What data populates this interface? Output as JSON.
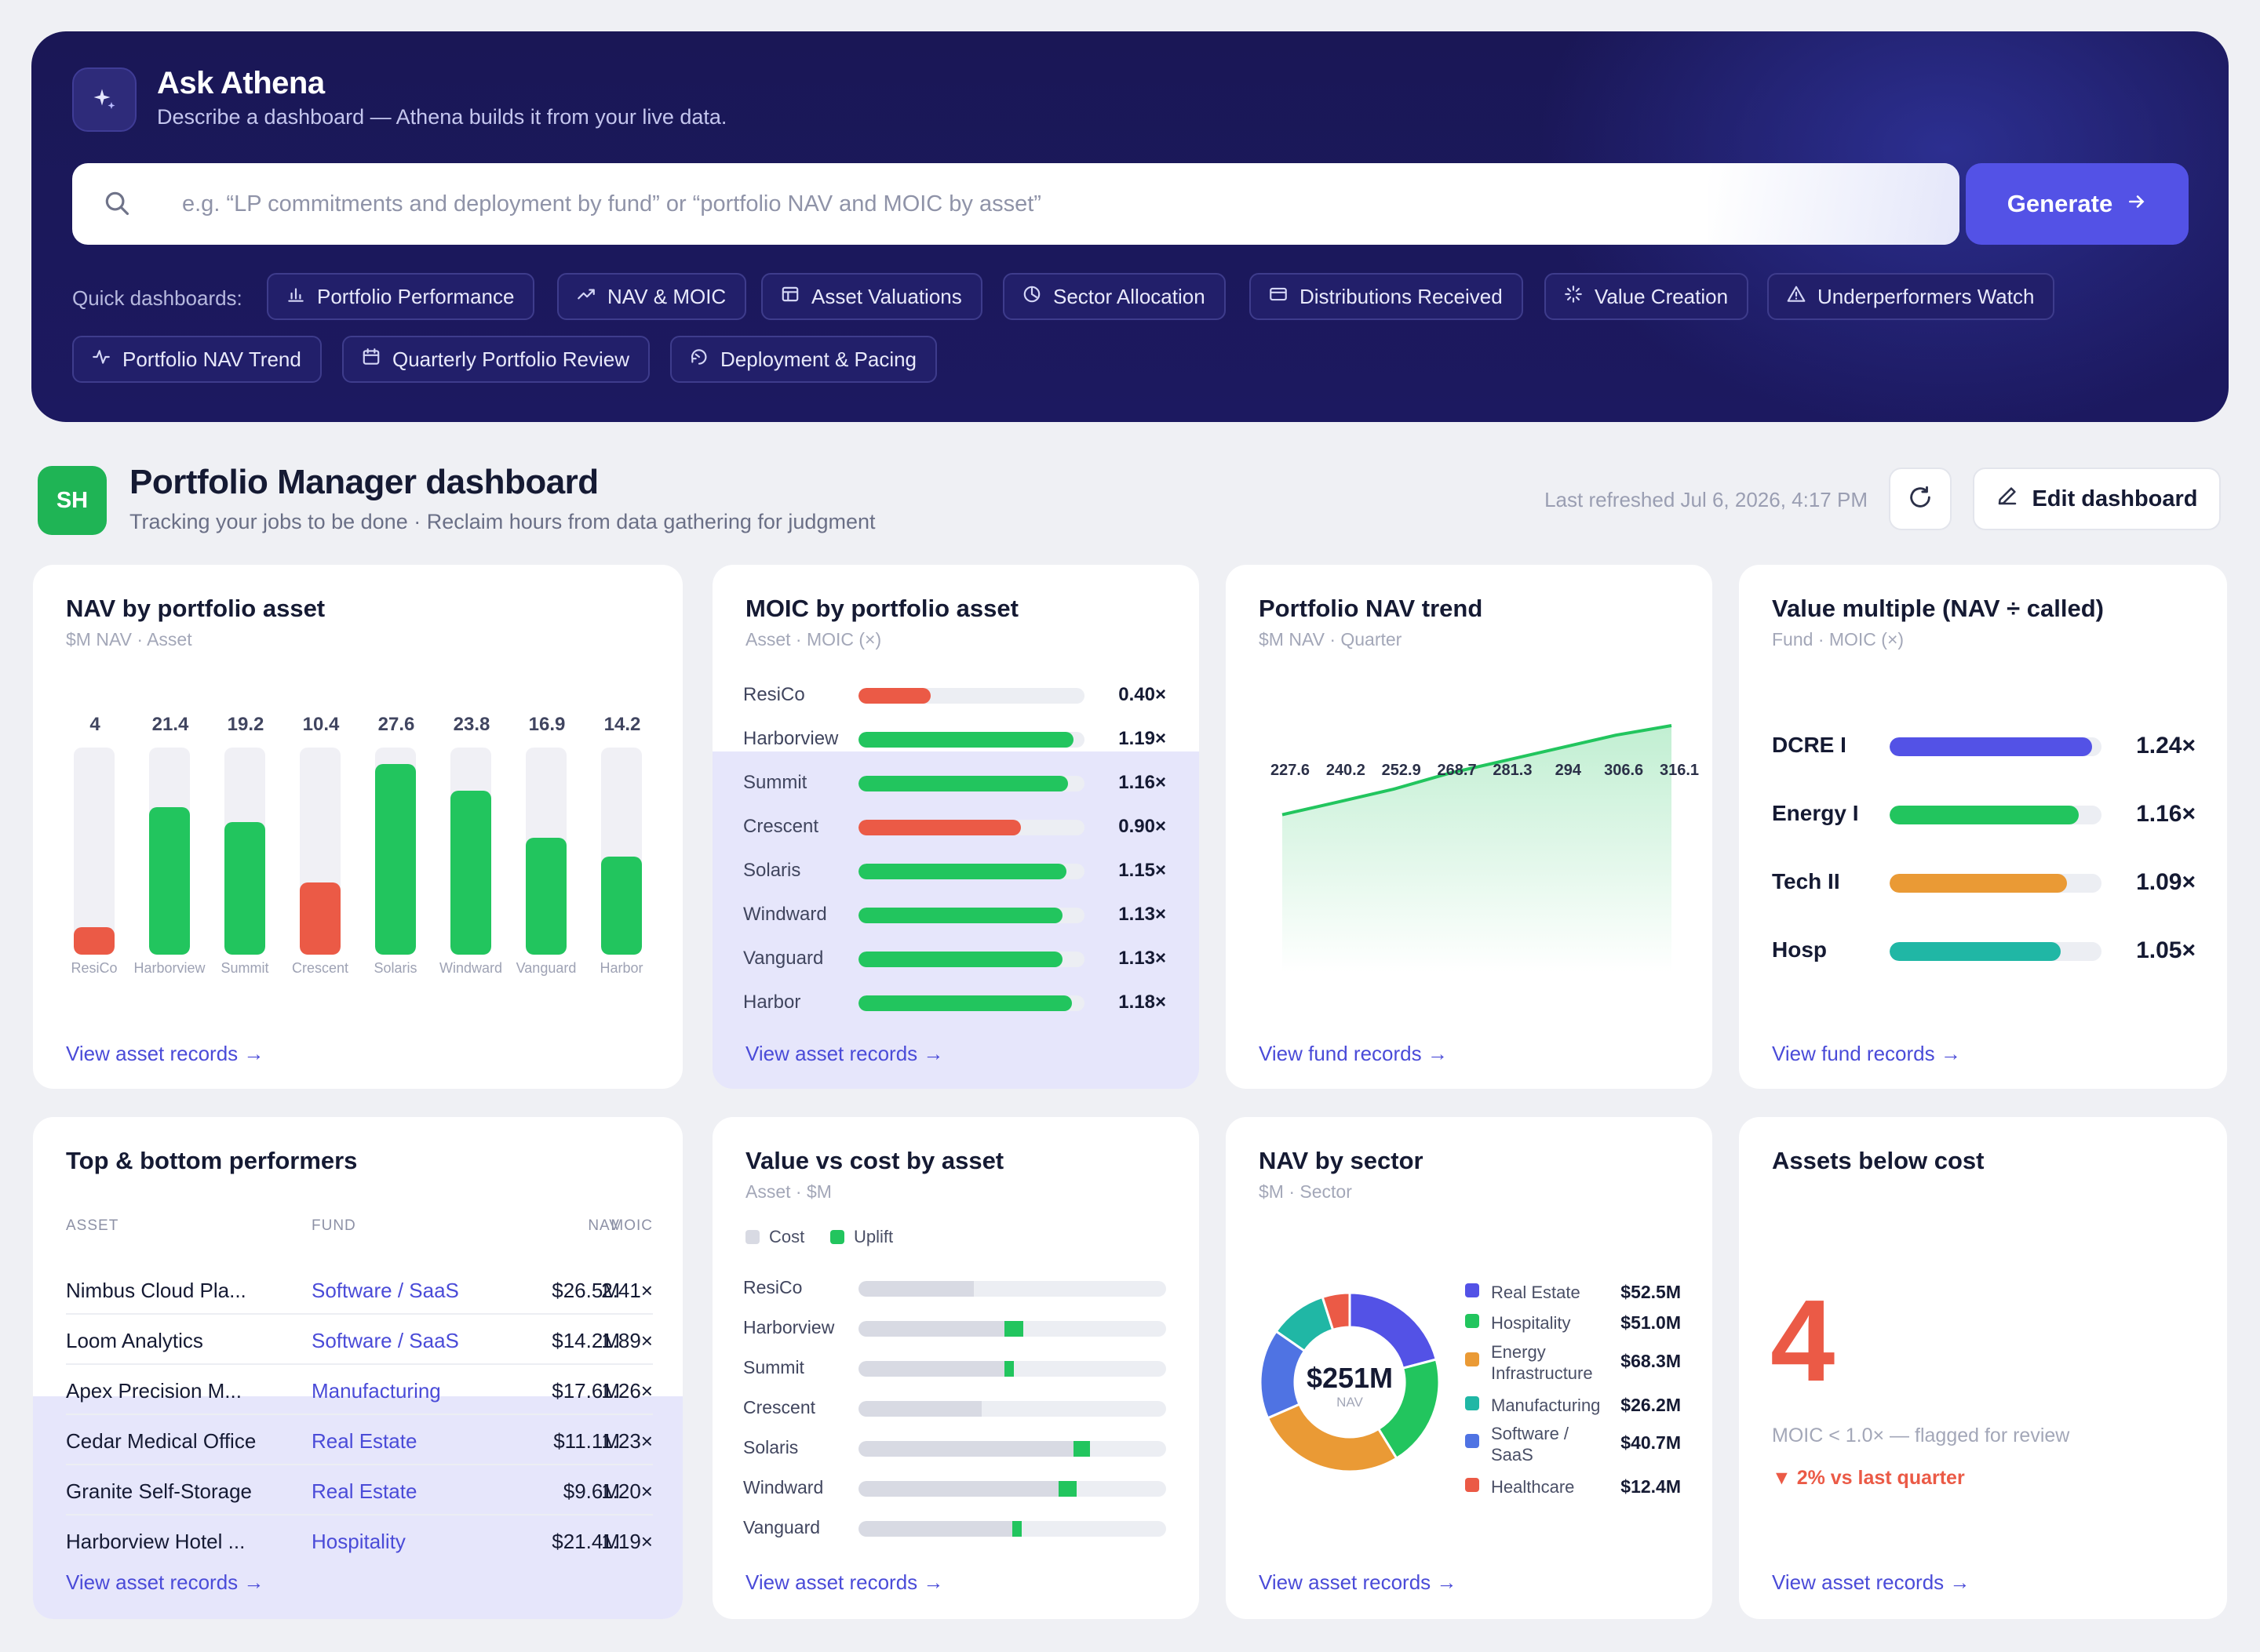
{
  "hero": {
    "title": "Ask Athena",
    "subtitle": "Describe a dashboard — Athena builds it from your live data.",
    "search_placeholder": "e.g. “LP commitments and deployment by fund” or “portfolio NAV and MOIC by asset”",
    "generate_label": "Generate",
    "quick_label": "Quick dashboards:",
    "chips": [
      {
        "label": "Portfolio Performance",
        "icon": "bar-chart-icon"
      },
      {
        "label": "NAV & MOIC",
        "icon": "trend-line-icon"
      },
      {
        "label": "Asset Valuations",
        "icon": "table-icon"
      },
      {
        "label": "Sector Allocation",
        "icon": "pie-icon"
      },
      {
        "label": "Distributions Received",
        "icon": "card-icon"
      },
      {
        "label": "Value Creation",
        "icon": "sparkle-icon"
      },
      {
        "label": "Underperformers Watch",
        "icon": "warning-icon"
      },
      {
        "label": "Portfolio NAV Trend",
        "icon": "pulse-icon"
      },
      {
        "label": "Quarterly Portfolio Review",
        "icon": "calendar-icon"
      },
      {
        "label": "Deployment & Pacing",
        "icon": "gauge-icon"
      }
    ]
  },
  "header": {
    "avatar": "SH",
    "title": "Portfolio Manager dashboard",
    "subtitle": "Tracking your jobs to be done · Reclaim hours from data gathering for judgment",
    "last_refreshed": "Last refreshed Jul 6, 2026, 4:17 PM",
    "edit_label": "Edit dashboard"
  },
  "colors": {
    "accent": "#5352e6",
    "green": "#22c55e",
    "red": "#eb5a46",
    "orange": "#ea9a35",
    "teal": "#20b7a5",
    "blue": "#4f73e3"
  },
  "cards": {
    "nav_asset": {
      "title": "NAV by portfolio asset",
      "subtitle": "$M NAV · Asset",
      "link": "View asset records →"
    },
    "moic_asset": {
      "title": "MOIC by portfolio asset",
      "subtitle": "Asset · MOIC (×)",
      "link": "View asset records →"
    },
    "nav_trend": {
      "title": "Portfolio NAV trend",
      "subtitle": "$M NAV · Quarter",
      "link": "View fund records →"
    },
    "value_multiple": {
      "title": "Value multiple (NAV ÷ called)",
      "subtitle": "Fund · MOIC (×)",
      "link": "View fund records →"
    },
    "performers": {
      "title": "Top & bottom performers",
      "link": "View asset records →",
      "columns": [
        "ASSET",
        "FUND",
        "NAV",
        "MOIC"
      ],
      "rows": [
        {
          "asset": "Nimbus Cloud Pla...",
          "fund": "Software / SaaS",
          "nav": "$26.5M",
          "moic": "2.41×"
        },
        {
          "asset": "Loom Analytics",
          "fund": "Software / SaaS",
          "nav": "$14.2M",
          "moic": "1.89×"
        },
        {
          "asset": "Apex Precision M...",
          "fund": "Manufacturing",
          "nav": "$17.6M",
          "moic": "1.26×"
        },
        {
          "asset": "Cedar Medical Office",
          "fund": "Real Estate",
          "nav": "$11.1M",
          "moic": "1.23×"
        },
        {
          "asset": "Granite Self-Storage",
          "fund": "Real Estate",
          "nav": "$9.6M",
          "moic": "1.20×"
        },
        {
          "asset": "Harborview Hotel ...",
          "fund": "Hospitality",
          "nav": "$21.4M",
          "moic": "1.19×"
        }
      ]
    },
    "value_cost": {
      "title": "Value vs cost by asset",
      "subtitle": "Asset · $M",
      "link": "View asset records →",
      "legend_cost": "Cost",
      "legend_uplift": "Uplift"
    },
    "nav_sector": {
      "title": "NAV by sector",
      "subtitle": "$M · Sector",
      "link": "View asset records →",
      "center_value": "$251M",
      "center_label": "NAV"
    },
    "below_cost": {
      "title": "Assets below cost",
      "value": "4",
      "caption": "MOIC < 1.0× — flagged for review",
      "delta": "▼ 2% vs last quarter",
      "link": "View asset records →"
    }
  },
  "chart_data": [
    {
      "type": "bar",
      "title": "NAV by portfolio asset",
      "categories": [
        "ResiCo",
        "Harborview",
        "Summit",
        "Crescent",
        "Solaris",
        "Windward",
        "Vanguard",
        "Harbor"
      ],
      "values": [
        4,
        21.4,
        19.2,
        10.4,
        27.6,
        23.8,
        16.9,
        14.2
      ],
      "labels": [
        "4",
        "21.4",
        "19.2",
        "10.4",
        "27.6",
        "23.8",
        "16.9",
        "14.2"
      ],
      "colors": [
        "#eb5a46",
        "#22c55e",
        "#22c55e",
        "#eb5a46",
        "#22c55e",
        "#22c55e",
        "#22c55e",
        "#22c55e"
      ],
      "ylim": [
        0,
        30
      ]
    },
    {
      "type": "bar",
      "title": "MOIC by portfolio asset",
      "orientation": "horizontal",
      "categories": [
        "ResiCo",
        "Harborview",
        "Summit",
        "Crescent",
        "Solaris",
        "Windward",
        "Vanguard",
        "Harbor"
      ],
      "values": [
        0.4,
        1.19,
        1.16,
        0.9,
        1.15,
        1.13,
        1.13,
        1.18
      ],
      "labels": [
        "0.40×",
        "1.19×",
        "1.16×",
        "0.90×",
        "1.15×",
        "1.13×",
        "1.13×",
        "1.18×"
      ],
      "colors": [
        "#eb5a46",
        "#22c55e",
        "#22c55e",
        "#eb5a46",
        "#22c55e",
        "#22c55e",
        "#22c55e",
        "#22c55e"
      ],
      "xlim": [
        0,
        1.25
      ]
    },
    {
      "type": "area",
      "title": "Portfolio NAV trend",
      "values": [
        227.6,
        240.2,
        252.9,
        268.7,
        281.3,
        294,
        306.6,
        316.1
      ],
      "labels": [
        "227.6",
        "240.2",
        "252.9",
        "268.7",
        "281.3",
        "294",
        "306.6",
        "316.1"
      ],
      "color": "#22c55e"
    },
    {
      "type": "bar",
      "title": "Value multiple (NAV ÷ called)",
      "orientation": "horizontal",
      "categories": [
        "DCRE I",
        "Energy I",
        "Tech II",
        "Hosp"
      ],
      "values": [
        1.24,
        1.16,
        1.09,
        1.05
      ],
      "labels": [
        "1.24×",
        "1.16×",
        "1.09×",
        "1.05×"
      ],
      "colors": [
        "#5352e6",
        "#22c55e",
        "#ea9a35",
        "#20b7a5"
      ],
      "xlim": [
        0,
        1.3
      ]
    },
    {
      "type": "bar",
      "title": "Value vs cost by asset",
      "orientation": "horizontal",
      "stacked": true,
      "categories": [
        "ResiCo",
        "Harborview",
        "Summit",
        "Crescent",
        "Solaris",
        "Windward",
        "Vanguard"
      ],
      "series": [
        {
          "name": "Cost",
          "values": [
            15,
            19,
            19,
            16,
            28,
            26,
            20
          ],
          "color": "#d8dae3"
        },
        {
          "name": "Uplift",
          "values": [
            0,
            2.4,
            1.2,
            0,
            2.1,
            2.3,
            1.2
          ],
          "color": "#22c55e"
        }
      ],
      "xlim": [
        0,
        40
      ]
    },
    {
      "type": "pie",
      "title": "NAV by sector",
      "donut": true,
      "categories": [
        "Real Estate",
        "Hospitality",
        "Energy Infrastructure",
        "Manufacturing",
        "Software / SaaS",
        "Healthcare"
      ],
      "values": [
        52.5,
        51.0,
        68.3,
        26.2,
        40.7,
        12.4
      ],
      "labels": [
        "$52.5M",
        "$51.0M",
        "$68.3M",
        "$26.2M",
        "$40.7M",
        "$12.4M"
      ],
      "colors": [
        "#5352e6",
        "#22c55e",
        "#ea9a35",
        "#20b7a5",
        "#4f73e3",
        "#eb5a46"
      ]
    }
  ]
}
